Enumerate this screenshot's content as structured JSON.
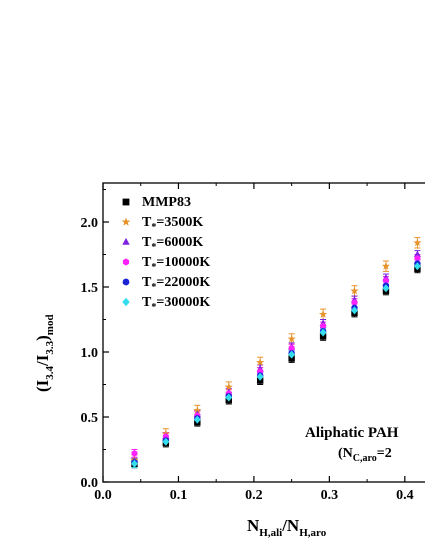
{
  "chart_data": {
    "type": "scatter",
    "title": "",
    "xlabel": {
      "main": "N",
      "sub1": "H,ali",
      "sep": "/N",
      "sub2": "H,aro"
    },
    "ylabel": {
      "pre": "(I",
      "sub1": "3.4",
      "mid": "/I",
      "sub2": "3.3",
      "post": ")",
      "sub3": "mod"
    },
    "xlim": [
      0.0,
      0.44
    ],
    "ylim": [
      0.0,
      2.3
    ],
    "xticks": [
      0.0,
      0.1,
      0.2,
      0.3,
      0.4
    ],
    "xtick_labels": [
      "0.0",
      "0.1",
      "0.2",
      "0.3",
      "0.4"
    ],
    "yticks": [
      0.0,
      0.5,
      1.0,
      1.5,
      2.0
    ],
    "ytick_labels": [
      "0.0",
      "0.5",
      "1.0",
      "1.5",
      "2.0"
    ],
    "grid": false,
    "legend_position": "top-left",
    "annotation": {
      "line1": "Aliphatic PAH",
      "line2_pre": "(N",
      "line2_sub": "C,aro",
      "line2_post": "=2"
    },
    "x": [
      0.0417,
      0.0833,
      0.125,
      0.1667,
      0.2083,
      0.25,
      0.2917,
      0.3333,
      0.375,
      0.4167
    ],
    "series": [
      {
        "name_main": "MMP83",
        "name_sub": "",
        "name_post": "",
        "marker": "square",
        "color": "#000000",
        "values": [
          0.14,
          0.3,
          0.46,
          0.63,
          0.78,
          0.95,
          1.12,
          1.3,
          1.47,
          1.64
        ],
        "error": 0.03
      },
      {
        "name_main": "T",
        "name_sub": "*",
        "name_post": "=3500K",
        "marker": "star",
        "color": "#e8922a",
        "values": [
          0.17,
          0.37,
          0.55,
          0.73,
          0.92,
          1.1,
          1.29,
          1.47,
          1.66,
          1.84
        ],
        "error": 0.04
      },
      {
        "name_main": "T",
        "name_sub": "*",
        "name_post": "=6000K",
        "marker": "triangle",
        "color": "#7b22e0",
        "values": [
          0.16,
          0.35,
          0.52,
          0.69,
          0.87,
          1.04,
          1.22,
          1.4,
          1.57,
          1.75
        ],
        "error": 0.03
      },
      {
        "name_main": "T",
        "name_sub": "*",
        "name_post": "=10000K",
        "marker": "hexagon",
        "color": "#ff22ff",
        "values": [
          0.22,
          0.35,
          0.51,
          0.68,
          0.85,
          1.03,
          1.2,
          1.38,
          1.55,
          1.72
        ],
        "error": 0.03
      },
      {
        "name_main": "T",
        "name_sub": "*",
        "name_post": "=22000K",
        "marker": "circle",
        "color": "#1a22d6",
        "values": [
          0.15,
          0.32,
          0.49,
          0.66,
          0.82,
          0.99,
          1.16,
          1.34,
          1.51,
          1.68
        ],
        "error": 0.03
      },
      {
        "name_main": "T",
        "name_sub": "*",
        "name_post": "=30000K",
        "marker": "diamond",
        "color": "#33ddee",
        "values": [
          0.14,
          0.31,
          0.48,
          0.65,
          0.81,
          0.98,
          1.15,
          1.32,
          1.49,
          1.66
        ],
        "error": 0.03
      }
    ]
  }
}
